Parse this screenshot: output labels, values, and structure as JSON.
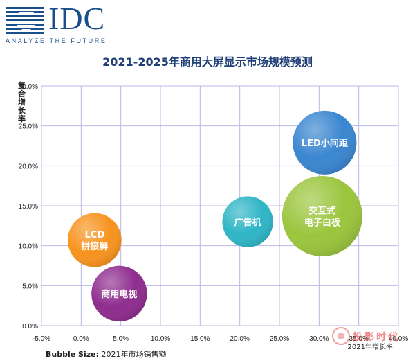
{
  "brand": {
    "name": "IDC",
    "tagline": "ANALYZE THE FUTURE",
    "color": "#1a4f8b"
  },
  "chart_data": {
    "type": "bubble",
    "title": "2021-2025年商用大屏显示市场规模预测",
    "xlabel": "2021年增长率",
    "ylabel": "复合增长率",
    "xlim": [
      -0.05,
      0.4
    ],
    "ylim": [
      0,
      0.3
    ],
    "x_ticks": [
      "-5.0%",
      "0.0%",
      "5.0%",
      "10.0%",
      "15.0%",
      "20.0%",
      "25.0%",
      "30.0%",
      "35.0%",
      "40.0%"
    ],
    "y_ticks": [
      "0.0%",
      "5.0%",
      "10.0%",
      "15.0%",
      "20.0%",
      "25.0%",
      "30.0%"
    ],
    "grid": true,
    "size_note_label": "Bubble Size:",
    "size_note_text": "2021年市场销售额",
    "points": [
      {
        "label": "LCD\n拼接屏",
        "x": 0.017,
        "y": 0.107,
        "size": 0.45,
        "color": "#f7931e"
      },
      {
        "label": "商用电视",
        "x": 0.048,
        "y": 0.04,
        "size": 0.48,
        "color": "#8e2d8e"
      },
      {
        "label": "广告机",
        "x": 0.21,
        "y": 0.13,
        "size": 0.4,
        "color": "#2fb5c6"
      },
      {
        "label": "交互式\n电子白板",
        "x": 0.304,
        "y": 0.137,
        "size": 1.0,
        "color": "#9bc53d"
      },
      {
        "label": "LED小间距",
        "x": 0.307,
        "y": 0.229,
        "size": 0.63,
        "color": "#3a86d0"
      }
    ]
  },
  "watermark": "投影时代"
}
